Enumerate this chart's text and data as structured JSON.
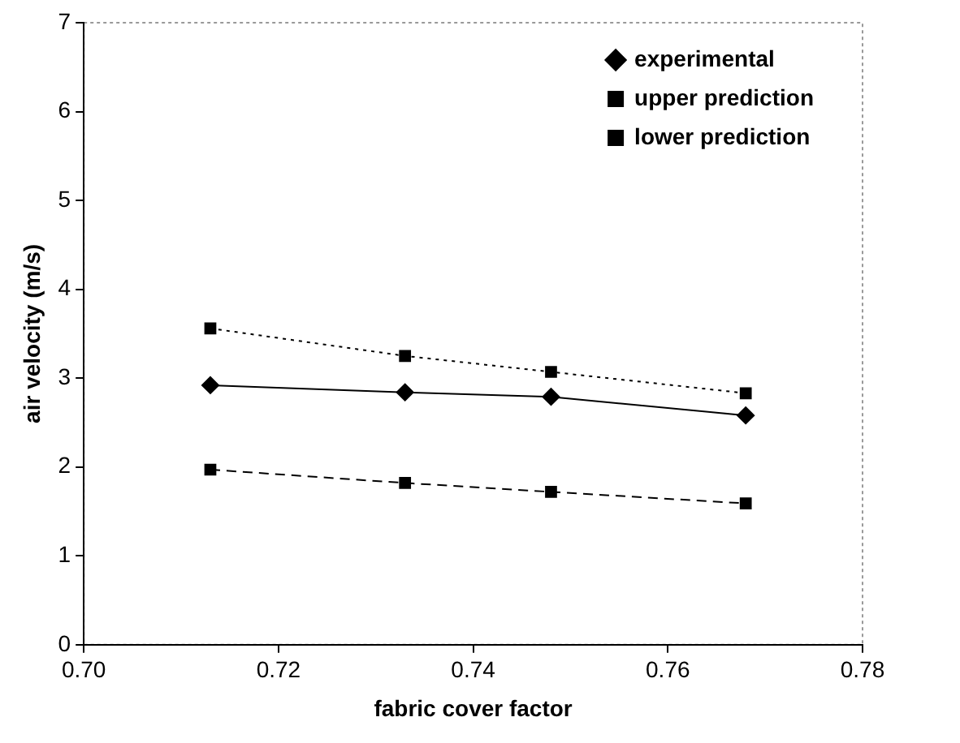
{
  "chart_data": {
    "type": "line",
    "xlabel": "fabric cover factor",
    "ylabel": "air velocity (m/s)",
    "x": [
      0.713,
      0.733,
      0.748,
      0.768
    ],
    "xlim": [
      0.7,
      0.78
    ],
    "xticks": [
      {
        "value": 0.7,
        "label": "0.70"
      },
      {
        "value": 0.72,
        "label": "0.72"
      },
      {
        "value": 0.74,
        "label": "0.74"
      },
      {
        "value": 0.76,
        "label": "0.76"
      },
      {
        "value": 0.78,
        "label": "0.78"
      }
    ],
    "ylim": [
      0,
      7
    ],
    "yticks": [
      0,
      1,
      2,
      3,
      4,
      5,
      6,
      7
    ],
    "grid": false,
    "legend": "top right",
    "series": [
      {
        "name": "experimental",
        "color": "#000000",
        "marker": "diamond",
        "line_style": "solid",
        "values": [
          2.92,
          2.84,
          2.79,
          2.58
        ]
      },
      {
        "name": "upper prediction",
        "color": "#000000",
        "marker": "square",
        "line_style": "dotted",
        "values": [
          3.56,
          3.25,
          3.07,
          2.83
        ]
      },
      {
        "name": "lower prediction",
        "color": "#000000",
        "marker": "square",
        "line_style": "dashed",
        "values": [
          1.97,
          1.82,
          1.72,
          1.59
        ]
      }
    ]
  }
}
